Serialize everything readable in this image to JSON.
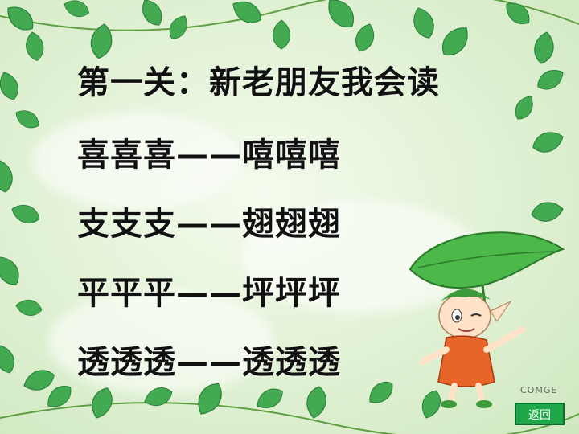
{
  "title": "第一关：新老朋友我会读",
  "rows": [
    "喜喜喜——嘻嘻嘻",
    "支支支——翅翅翅",
    "平平平——坪坪坪",
    "透透透——透透透"
  ],
  "logo_text": "COMGE",
  "back_button_label": "返回",
  "colors": {
    "text": "#111111",
    "leaf": "#3aa64a",
    "button": "#1fa84a"
  }
}
